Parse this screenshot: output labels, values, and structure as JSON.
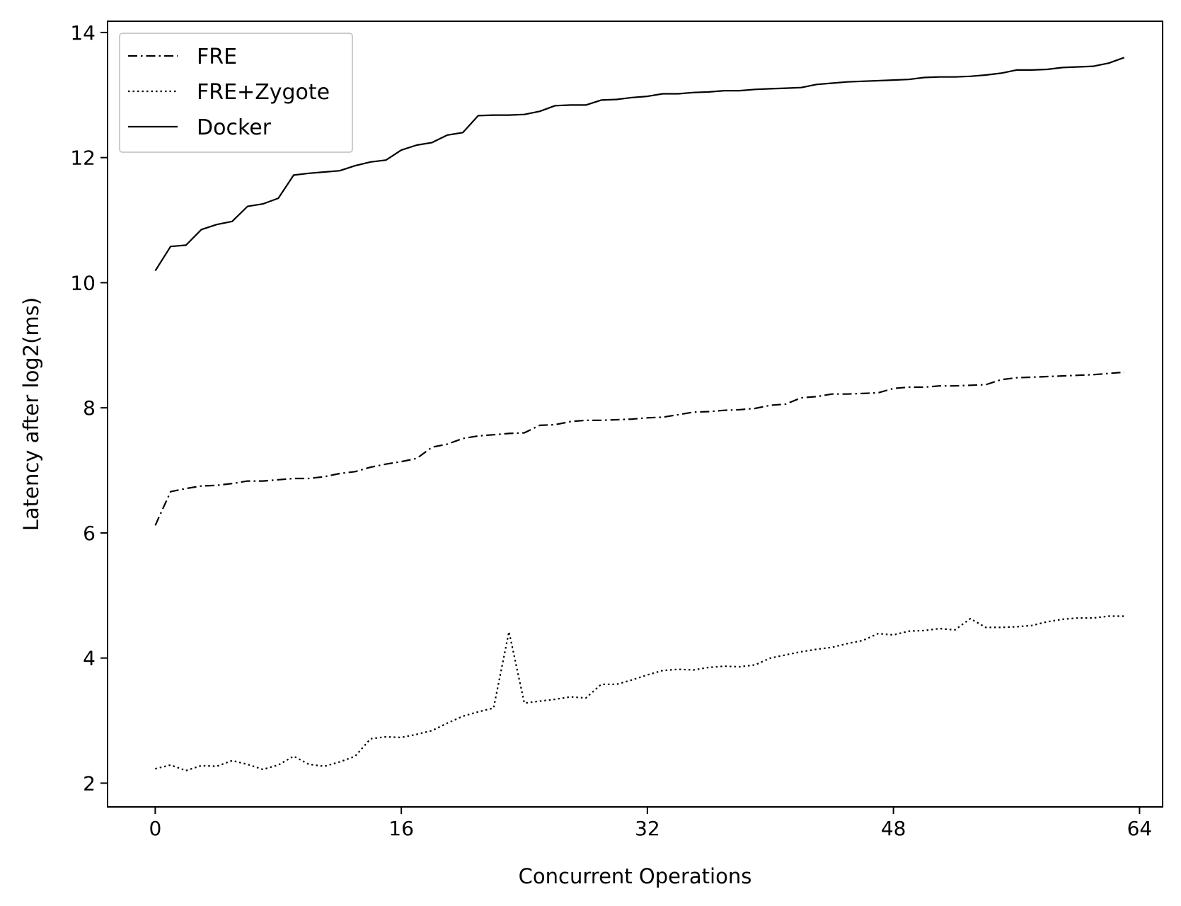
{
  "chart_data": {
    "type": "line",
    "title": "",
    "xlabel": "Concurrent Operations",
    "ylabel": "Latency after log2(ms)",
    "xlim": [
      -3.1,
      65.5
    ],
    "ylim": [
      1.62,
      14.18
    ],
    "xticks": [
      0,
      16,
      32,
      48,
      64
    ],
    "yticks": [
      2,
      4,
      6,
      8,
      10,
      12,
      14
    ],
    "grid": false,
    "legend_position": "top-left",
    "line_color": "#000000",
    "series": [
      {
        "name": "FRE",
        "style": "dashdot",
        "values": [
          6.12,
          6.66,
          6.71,
          6.75,
          6.76,
          6.79,
          6.83,
          6.83,
          6.85,
          6.87,
          6.87,
          6.9,
          6.95,
          6.98,
          7.05,
          7.1,
          7.14,
          7.19,
          7.37,
          7.42,
          7.51,
          7.55,
          7.57,
          7.59,
          7.6,
          7.72,
          7.73,
          7.78,
          7.8,
          7.8,
          7.81,
          7.82,
          7.84,
          7.85,
          7.89,
          7.93,
          7.94,
          7.96,
          7.97,
          7.99,
          8.04,
          8.06,
          8.16,
          8.18,
          8.22,
          8.22,
          8.23,
          8.24,
          8.31,
          8.33,
          8.33,
          8.35,
          8.35,
          8.36,
          8.37,
          8.45,
          8.48,
          8.49,
          8.5,
          8.51,
          8.52,
          8.53,
          8.55,
          8.57
        ]
      },
      {
        "name": "FRE+Zygote",
        "style": "dotted",
        "values": [
          2.23,
          2.29,
          2.2,
          2.28,
          2.27,
          2.36,
          2.3,
          2.22,
          2.29,
          2.43,
          2.3,
          2.27,
          2.34,
          2.43,
          2.71,
          2.74,
          2.73,
          2.78,
          2.84,
          2.96,
          3.07,
          3.14,
          3.2,
          4.42,
          3.28,
          3.31,
          3.34,
          3.38,
          3.36,
          3.58,
          3.58,
          3.65,
          3.73,
          3.8,
          3.82,
          3.81,
          3.85,
          3.87,
          3.86,
          3.89,
          4.0,
          4.05,
          4.1,
          4.14,
          4.17,
          4.23,
          4.28,
          4.39,
          4.37,
          4.43,
          4.44,
          4.47,
          4.45,
          4.63,
          4.49,
          4.49,
          4.5,
          4.52,
          4.58,
          4.62,
          4.64,
          4.64,
          4.67,
          4.67
        ]
      },
      {
        "name": "Docker",
        "style": "solid",
        "values": [
          10.19,
          10.58,
          10.6,
          10.85,
          10.93,
          10.98,
          11.22,
          11.26,
          11.35,
          11.72,
          11.75,
          11.77,
          11.79,
          11.87,
          11.93,
          11.96,
          12.12,
          12.2,
          12.24,
          12.36,
          12.4,
          12.67,
          12.68,
          12.68,
          12.69,
          12.74,
          12.83,
          12.84,
          12.84,
          12.92,
          12.93,
          12.96,
          12.98,
          13.02,
          13.02,
          13.04,
          13.05,
          13.07,
          13.07,
          13.09,
          13.1,
          13.11,
          13.12,
          13.17,
          13.19,
          13.21,
          13.22,
          13.23,
          13.24,
          13.25,
          13.28,
          13.29,
          13.29,
          13.3,
          13.32,
          13.35,
          13.4,
          13.4,
          13.41,
          13.44,
          13.45,
          13.46,
          13.51,
          13.6
        ]
      }
    ]
  }
}
